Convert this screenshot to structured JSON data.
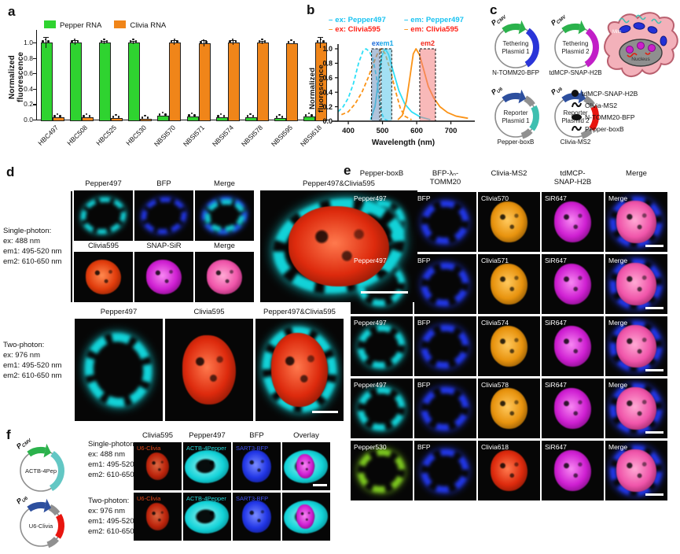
{
  "panel_a": {
    "label": "a",
    "chart_data": {
      "type": "bar",
      "ylabel": "Normalized fluorescence",
      "ylim": [
        0,
        1.15
      ],
      "yticks": [
        0.0,
        0.2,
        0.4,
        0.6,
        0.8,
        1.0
      ],
      "categories": [
        "HBC497",
        "HBC508",
        "HBC525",
        "HBC530",
        "NBSI570",
        "NBSI571",
        "NBSI574",
        "NBSI578",
        "NBSI595",
        "NBSI618"
      ],
      "series": [
        {
          "name": "Pepper RNA",
          "color": "#2fd330",
          "values": [
            1.0,
            1.0,
            1.0,
            1.0,
            0.05,
            0.04,
            0.03,
            0.03,
            0.02,
            0.04
          ]
        },
        {
          "name": "Clivia RNA",
          "color": "#f08519",
          "values": [
            0.03,
            0.03,
            0.02,
            0.01,
            1.0,
            0.99,
            1.0,
            1.0,
            0.99,
            1.0
          ]
        }
      ],
      "errors": [
        [
          0.07,
          0.03,
          0.02,
          0.02,
          0.01,
          0.01,
          0.01,
          0.01,
          0.005,
          0.01
        ],
        [
          0.005,
          0.005,
          0.005,
          0.005,
          0.03,
          0.04,
          0.03,
          0.02,
          0.01,
          0.07
        ]
      ],
      "replicate_dots_per_bar": 3,
      "grid": false,
      "legend_position": "top"
    }
  },
  "panel_b": {
    "label": "b",
    "legend": [
      {
        "label": "ex: Pepper497",
        "text_color": "#19c3f2",
        "dash_color": "#19c3f2",
        "dashed": true
      },
      {
        "label": "em: Pepper497",
        "text_color": "#19c3f2",
        "dash_color": "#19c3f2",
        "dashed": false
      },
      {
        "label": "ex: Clivia595",
        "text_color": "#ff2015",
        "dash_color": "#fb9317",
        "dashed": true
      },
      {
        "label": "em: Clivia595",
        "text_color": "#ff2015",
        "dash_color": "#fb9317",
        "dashed": false
      }
    ],
    "chart_data": {
      "type": "line",
      "xlabel": "Wavelength (nm)",
      "ylabel": "Normalized fluorescence",
      "xlim": [
        370,
        760
      ],
      "ylim": [
        0,
        1.05
      ],
      "xticks": [
        400,
        500,
        600,
        700
      ],
      "yticks": [
        0.0,
        0.2,
        0.4,
        0.6,
        0.8,
        1.0
      ],
      "bands": [
        {
          "label": "ex",
          "x1": 468,
          "x2": 492,
          "fill": "#6f92bd",
          "label_color": "#1d6ad9"
        },
        {
          "label": "em1",
          "x1": 496,
          "x2": 527,
          "fill": "#57c6ea",
          "label_color": "#18a8e8"
        },
        {
          "label": "em2",
          "x1": 609,
          "x2": 655,
          "fill": "#f28080",
          "label_color": "#f2281c"
        }
      ],
      "series": [
        {
          "name": "ex: Pepper497",
          "color": "#2ee0f7",
          "dashed": true,
          "points": [
            [
              370,
              0.13
            ],
            [
              385,
              0.2
            ],
            [
              400,
              0.32
            ],
            [
              415,
              0.52
            ],
            [
              430,
              0.8
            ],
            [
              443,
              0.97
            ],
            [
              452,
              1.0
            ],
            [
              462,
              0.96
            ],
            [
              472,
              0.86
            ],
            [
              482,
              0.62
            ],
            [
              490,
              0.32
            ],
            [
              497,
              0.12
            ],
            [
              505,
              0.03
            ],
            [
              515,
              0.01
            ]
          ]
        },
        {
          "name": "em: Pepper497",
          "color": "#2ee0f7",
          "dashed": false,
          "points": [
            [
              465,
              0.02
            ],
            [
              478,
              0.2
            ],
            [
              488,
              0.55
            ],
            [
              498,
              0.9
            ],
            [
              508,
              1.0
            ],
            [
              518,
              0.92
            ],
            [
              532,
              0.68
            ],
            [
              548,
              0.42
            ],
            [
              565,
              0.24
            ],
            [
              585,
              0.13
            ],
            [
              610,
              0.06
            ],
            [
              640,
              0.02
            ]
          ]
        },
        {
          "name": "ex: Clivia595",
          "color": "#fb9317",
          "dashed": true,
          "points": [
            [
              380,
              0.09
            ],
            [
              400,
              0.13
            ],
            [
              420,
              0.24
            ],
            [
              440,
              0.4
            ],
            [
              458,
              0.6
            ],
            [
              472,
              0.78
            ],
            [
              486,
              0.94
            ],
            [
              497,
              1.0
            ],
            [
              508,
              0.93
            ],
            [
              522,
              0.72
            ],
            [
              538,
              0.42
            ],
            [
              552,
              0.18
            ],
            [
              565,
              0.07
            ],
            [
              585,
              0.02
            ]
          ]
        },
        {
          "name": "em: Clivia595",
          "color": "#fb9317",
          "dashed": false,
          "points": [
            [
              545,
              0.02
            ],
            [
              558,
              0.08
            ],
            [
              570,
              0.28
            ],
            [
              580,
              0.6
            ],
            [
              590,
              0.93
            ],
            [
              598,
              1.0
            ],
            [
              608,
              0.92
            ],
            [
              620,
              0.72
            ],
            [
              634,
              0.48
            ],
            [
              650,
              0.32
            ],
            [
              668,
              0.2
            ],
            [
              690,
              0.12
            ],
            [
              715,
              0.07
            ],
            [
              750,
              0.04
            ]
          ]
        }
      ]
    }
  },
  "panel_c": {
    "label": "c",
    "plasmids": [
      {
        "promoter": "P",
        "promoter_sub": "CMV",
        "promoter_color": "#2bb24c",
        "name_lines": [
          "Tethering",
          "Plasmid 1"
        ],
        "arcs": [
          [
            "#2a35d8",
            36,
            148
          ]
        ],
        "caption": "N-TOMM20-BFP"
      },
      {
        "promoter": "P",
        "promoter_sub": "CMV",
        "promoter_color": "#2bb24c",
        "name_lines": [
          "Tethering",
          "Plasmid 2"
        ],
        "arcs": [
          [
            "#c11fc7",
            36,
            148
          ]
        ],
        "caption": "tdMCP-SNAP-H2B"
      },
      {
        "promoter": "P",
        "promoter_sub": "U6",
        "promoter_color": "#2d4f9e",
        "name_lines": [
          "Reporter",
          "Plasmid 1"
        ],
        "arcs": [
          [
            "#909090",
            28,
            56
          ],
          [
            "#3fbfb0",
            62,
            128
          ],
          [
            "#909090",
            134,
            162
          ]
        ],
        "caption": "Pepper-boxB"
      },
      {
        "promoter": "P",
        "promoter_sub": "U6",
        "promoter_color": "#2d4f9e",
        "name_lines": [
          "Reporter",
          "Plasmid 2"
        ],
        "arcs": [
          [
            "#909090",
            28,
            56
          ],
          [
            "#e8150f",
            62,
            128
          ],
          [
            "#909090",
            134,
            162
          ]
        ],
        "caption": "Clivia-MS2"
      }
    ],
    "cell": {
      "mito": "Mito",
      "nucleus": "Nucleus",
      "body_color": "#f3b1ba",
      "nucleus_color": "#8f8f8f"
    },
    "legend": [
      {
        "icon": "circle",
        "label": "tdMCP-SNAP-H2B",
        "color": "#cb1fcb"
      },
      {
        "icon": "squiggle",
        "label": "Clivia-MS2",
        "color": "#e8150f"
      },
      {
        "icon": "oval",
        "label": "N-TOMM20-BFP",
        "color": "#2a35d8"
      },
      {
        "icon": "squiggle",
        "label": "Pepper-boxB",
        "color": "#3fbfb0"
      }
    ]
  },
  "panel_d": {
    "label": "d",
    "single_photon_text": [
      "Single-photon:",
      "ex: 488 nm",
      "em1: 495-520 nm",
      "em2: 610-650 nm"
    ],
    "two_photon_text": [
      "Two-photon:",
      "ex: 976 nm",
      "em1: 495-520 nm",
      "em2: 610-650 nm"
    ],
    "grid1_headers": [
      "Pepper497",
      "BFP",
      "Merge"
    ],
    "large_header": "Pepper497&Clivia595",
    "grid2_headers": [
      "Clivia595",
      "SNAP-SiR",
      "Merge"
    ],
    "bottom_headers": [
      "Pepper497",
      "Clivia595",
      "Pepper497&Clivia595"
    ],
    "cells": {
      "r1": [
        {
          "look": "ring:cyan"
        },
        {
          "look": "ring:blue"
        },
        {
          "look": "ringmerge:blue+cyan"
        }
      ],
      "r2": [
        {
          "look": "nuc:redorange"
        },
        {
          "look": "nuc:magenta"
        },
        {
          "look": "nuc:pink"
        }
      ],
      "large": {
        "look": "merge:red+cyan",
        "scalebar": true
      },
      "bottom": [
        {
          "look": "ring:cyan"
        },
        {
          "look": "nuc:red"
        },
        {
          "look": "merge:red+cyan",
          "scalebar": true
        }
      ]
    }
  },
  "panel_e": {
    "label": "e",
    "headers": [
      {
        "l1": "",
        "l2": "Pepper-boxB"
      },
      {
        "l1": "BFP-λₙ-",
        "l2": "TOMM20"
      },
      {
        "l1": "",
        "l2": "Clivia-MS2"
      },
      {
        "l1": "tdMCP-",
        "l2": "SNAP-H2B"
      },
      {
        "l1": "",
        "l2": "Merge"
      }
    ],
    "rows": [
      {
        "cells": [
          {
            "label": "Pepper497",
            "look": "ring:cyan"
          },
          {
            "label": "BFP",
            "look": "ring:blue"
          },
          {
            "label": "Clivia570",
            "look": "nuc:orange"
          },
          {
            "label": "SiR647",
            "look": "nuc:magenta"
          },
          {
            "label": "Merge",
            "look": "merge:pink+blue",
            "scalebar": true
          }
        ]
      },
      {
        "cells": [
          {
            "label": "Pepper497",
            "look": "ring:cyan"
          },
          {
            "label": "BFP",
            "look": "ring:blue"
          },
          {
            "label": "Clivia571",
            "look": "nuc:orange"
          },
          {
            "label": "SiR647",
            "look": "nuc:magenta"
          },
          {
            "label": "Merge",
            "look": "merge:pink+blue",
            "scalebar": true
          }
        ]
      },
      {
        "cells": [
          {
            "label": "Pepper497",
            "look": "ring:cyan"
          },
          {
            "label": "BFP",
            "look": "ring:blue"
          },
          {
            "label": "Clivia574",
            "look": "nuc:orange"
          },
          {
            "label": "SiR647",
            "look": "nuc:magenta"
          },
          {
            "label": "Merge",
            "look": "merge:pink+blue",
            "scalebar": true
          }
        ]
      },
      {
        "cells": [
          {
            "label": "Pepper497",
            "look": "ring:cyan"
          },
          {
            "label": "BFP",
            "look": "ring:blue"
          },
          {
            "label": "Clivia578",
            "look": "nuc:orange"
          },
          {
            "label": "SiR647",
            "look": "nuc:magenta"
          },
          {
            "label": "Merge",
            "look": "merge:pink+blue",
            "scalebar": true
          }
        ]
      },
      {
        "cells": [
          {
            "label": "Pepper530",
            "look": "ring:green"
          },
          {
            "label": "BFP",
            "look": "ring:blue"
          },
          {
            "label": "Clivia618",
            "look": "nuc:red"
          },
          {
            "label": "SiR647",
            "look": "nuc:magenta"
          },
          {
            "label": "Merge",
            "look": "merge:pink+blue",
            "scalebar": true
          }
        ]
      }
    ]
  },
  "panel_f": {
    "label": "f",
    "plasmids": [
      {
        "promoter": "P",
        "promoter_sub": "CMV",
        "promoter_color": "#2bb24c",
        "name_lines": [
          "ACTB-4Pep"
        ],
        "arcs": [
          [
            "#63c7c4",
            34,
            150
          ]
        ]
      },
      {
        "promoter": "P",
        "promoter_sub": "U6",
        "promoter_color": "#2d4f9e",
        "name_lines": [
          "U6-Clivia"
        ],
        "arcs": [
          [
            "#909090",
            26,
            54
          ],
          [
            "#e8150f",
            60,
            124
          ],
          [
            "#909090",
            130,
            160
          ]
        ]
      }
    ],
    "single_photon_text": [
      "Single-photon:",
      "ex: 488 nm",
      "em1: 495-520 nm",
      "em2: 610-650 nm"
    ],
    "two_photon_text": [
      "Two-photon:",
      "ex: 976 nm",
      "em1: 495-520 nm",
      "em2: 610-650 nm"
    ],
    "headers": [
      "Clivia595",
      "Pepper497",
      "BFP",
      "Overlay"
    ],
    "rows": [
      {
        "cells": [
          {
            "label": "U6-Clivia",
            "lc": "#e84818",
            "look": "nucdim:red"
          },
          {
            "label": "ACTB-4Pepper",
            "lc": "#22d8d8",
            "look": "cell:cyan"
          },
          {
            "label": "SART3-BFP",
            "lc": "#4050f0",
            "look": "nuc:blue"
          },
          {
            "label": "",
            "look": "overlay:cyan+magenta",
            "scalebar": true
          }
        ]
      },
      {
        "cells": [
          {
            "label": "U6-Clivia",
            "lc": "#e84818",
            "look": "nucdim:red"
          },
          {
            "label": "ACTB-4Pepper",
            "lc": "#22d8d8",
            "look": "cell:cyan"
          },
          {
            "label": "SART3-BFP",
            "lc": "#4050f0",
            "look": "nuc:blue"
          },
          {
            "label": "",
            "look": "overlay:cyan+magenta"
          }
        ]
      }
    ]
  },
  "palette": {
    "cyan": {
      "c": "#12d2d8",
      "l": "#9ff5f2",
      "d": "#045a60"
    },
    "blue": {
      "c": "#2136e6",
      "l": "#7a8cff",
      "d": "#0a1160"
    },
    "orange": {
      "c": "#e8930e",
      "l": "#ffc95e",
      "d": "#5f3a02"
    },
    "magenta": {
      "c": "#cf1fd2",
      "l": "#f788f2",
      "d": "#57055c"
    },
    "red": {
      "c": "#dd2a0d",
      "l": "#ff7a4e",
      "d": "#5c0f02"
    },
    "redorange": {
      "c": "#e13c0c",
      "l": "#ff8a50",
      "d": "#601802"
    },
    "pink": {
      "c": "#f055aa",
      "l": "#ffaad4",
      "d": "#701048"
    },
    "green": {
      "c": "#7cc71f",
      "l": "#c8f080",
      "d": "#2d5404"
    }
  }
}
